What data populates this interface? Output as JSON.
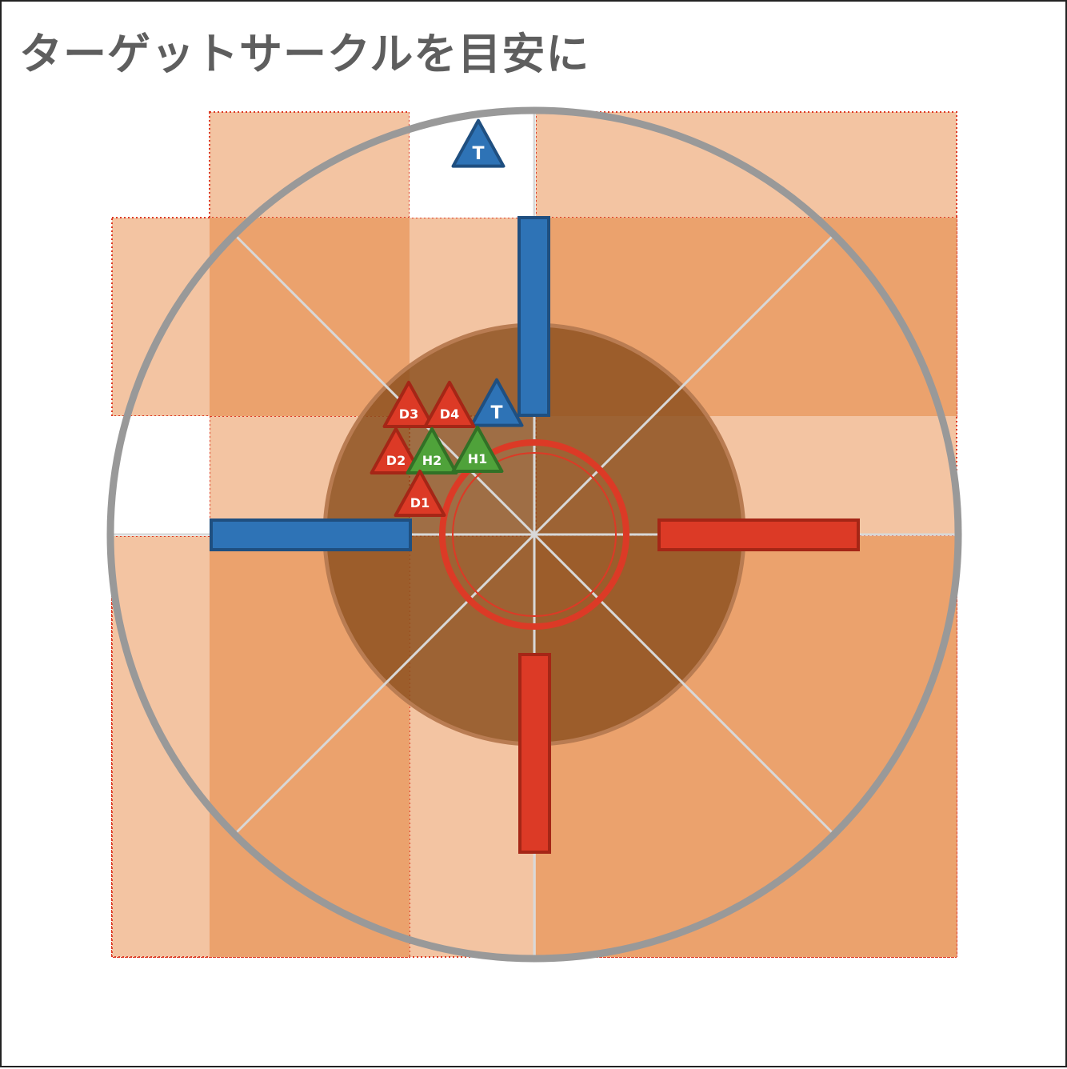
{
  "title": "ターゲットサークルを目安に",
  "colors": {
    "zone_light": "#f3c4a2",
    "zone_dark": "#eba26d",
    "zone_border": "#dd3b26",
    "inner_circle": "#8a4e1c",
    "arena_ring": "#999999",
    "spokes": "#d8d8d8",
    "blue": "#2e73b6",
    "blue_border": "#1f4f80",
    "red": "#dc3a26",
    "red_border": "#a52616",
    "green": "#4fa23a",
    "green_border": "#327126"
  },
  "markers": [
    {
      "id": "tank-top",
      "label": "T",
      "color": "blue"
    },
    {
      "id": "tank",
      "label": "T",
      "color": "blue"
    },
    {
      "id": "d3",
      "label": "D3",
      "color": "red"
    },
    {
      "id": "d4",
      "label": "D4",
      "color": "red"
    },
    {
      "id": "d2",
      "label": "D2",
      "color": "red"
    },
    {
      "id": "h2",
      "label": "H2",
      "color": "green"
    },
    {
      "id": "h1",
      "label": "H1",
      "color": "green"
    },
    {
      "id": "d1",
      "label": "D1",
      "color": "red"
    }
  ]
}
